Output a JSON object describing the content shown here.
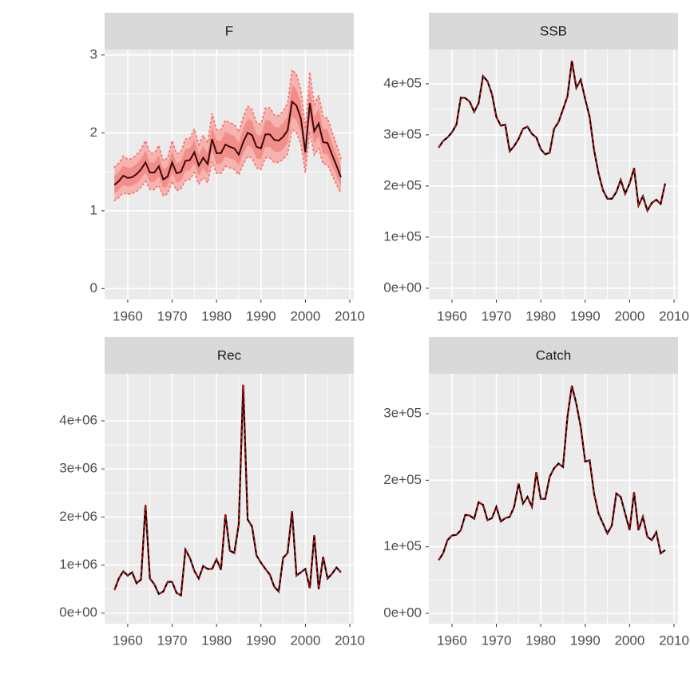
{
  "chart_data": [
    {
      "type": "line",
      "title": "F",
      "x": [
        1957,
        1958,
        1959,
        1960,
        1961,
        1962,
        1963,
        1964,
        1965,
        1966,
        1967,
        1968,
        1969,
        1970,
        1971,
        1972,
        1973,
        1974,
        1975,
        1976,
        1977,
        1978,
        1979,
        1980,
        1981,
        1982,
        1983,
        1984,
        1985,
        1986,
        1987,
        1988,
        1989,
        1990,
        1991,
        1992,
        1993,
        1994,
        1995,
        1996,
        1997,
        1998,
        1999,
        2000,
        2001,
        2002,
        2003,
        2004,
        2005,
        2006,
        2007,
        2008
      ],
      "values": [
        1.33,
        1.38,
        1.45,
        1.42,
        1.43,
        1.47,
        1.53,
        1.62,
        1.49,
        1.49,
        1.57,
        1.4,
        1.44,
        1.62,
        1.48,
        1.5,
        1.64,
        1.65,
        1.75,
        1.58,
        1.68,
        1.6,
        1.92,
        1.74,
        1.74,
        1.85,
        1.82,
        1.8,
        1.72,
        1.88,
        2.0,
        1.97,
        1.82,
        1.8,
        1.98,
        1.98,
        1.91,
        1.9,
        1.95,
        2.03,
        2.4,
        2.35,
        2.18,
        1.75,
        2.38,
        2.02,
        2.12,
        1.88,
        1.87,
        1.72,
        1.58,
        1.43
      ],
      "lower": [
        1.13,
        1.17,
        1.23,
        1.21,
        1.22,
        1.25,
        1.3,
        1.38,
        1.27,
        1.27,
        1.33,
        1.19,
        1.22,
        1.38,
        1.26,
        1.28,
        1.39,
        1.4,
        1.49,
        1.34,
        1.43,
        1.36,
        1.63,
        1.48,
        1.48,
        1.57,
        1.55,
        1.53,
        1.46,
        1.6,
        1.7,
        1.67,
        1.55,
        1.53,
        1.68,
        1.68,
        1.62,
        1.62,
        1.66,
        1.73,
        2.04,
        2.0,
        1.85,
        1.49,
        2.02,
        1.72,
        1.8,
        1.6,
        1.59,
        1.46,
        1.34,
        1.22
      ],
      "upper": [
        1.56,
        1.61,
        1.7,
        1.66,
        1.67,
        1.72,
        1.79,
        1.9,
        1.74,
        1.74,
        1.84,
        1.64,
        1.68,
        1.9,
        1.73,
        1.76,
        1.92,
        1.93,
        2.05,
        1.85,
        1.97,
        1.87,
        2.25,
        2.04,
        2.04,
        2.16,
        2.13,
        2.11,
        2.01,
        2.2,
        2.34,
        2.3,
        2.13,
        2.11,
        2.32,
        2.32,
        2.23,
        2.22,
        2.28,
        2.38,
        2.81,
        2.75,
        2.55,
        2.05,
        2.78,
        2.36,
        2.48,
        2.2,
        2.19,
        2.01,
        1.85,
        1.67
      ],
      "inner_lower": [
        1.22,
        1.27,
        1.33,
        1.31,
        1.32,
        1.35,
        1.41,
        1.49,
        1.37,
        1.37,
        1.44,
        1.29,
        1.32,
        1.49,
        1.36,
        1.38,
        1.51,
        1.52,
        1.61,
        1.45,
        1.55,
        1.47,
        1.77,
        1.6,
        1.6,
        1.7,
        1.67,
        1.66,
        1.58,
        1.73,
        1.84,
        1.81,
        1.67,
        1.66,
        1.82,
        1.82,
        1.76,
        1.75,
        1.79,
        1.87,
        2.21,
        2.16,
        2.01,
        1.61,
        2.19,
        1.86,
        1.95,
        1.73,
        1.72,
        1.58,
        1.45,
        1.32
      ],
      "inner_upper": [
        1.45,
        1.5,
        1.58,
        1.55,
        1.56,
        1.6,
        1.67,
        1.77,
        1.62,
        1.62,
        1.71,
        1.53,
        1.57,
        1.77,
        1.61,
        1.64,
        1.79,
        1.8,
        1.91,
        1.72,
        1.83,
        1.74,
        2.09,
        1.9,
        1.9,
        2.02,
        1.98,
        1.96,
        1.87,
        2.05,
        2.18,
        2.15,
        1.98,
        1.96,
        2.16,
        2.16,
        2.08,
        2.07,
        2.13,
        2.21,
        2.62,
        2.56,
        2.38,
        1.91,
        2.59,
        2.2,
        2.31,
        2.05,
        2.04,
        1.87,
        1.72,
        1.56
      ],
      "color": "#3b0a0a",
      "band_color": "#f6b3b0",
      "inner_band_color": "#f28e89",
      "dash_color": "#f8766d",
      "xlim": [
        1954.8,
        2010.9
      ],
      "xticks": [
        1960,
        1970,
        1980,
        1990,
        2000,
        2010
      ],
      "ylim": [
        -0.14,
        3.07
      ],
      "yticks": [
        0,
        1,
        2,
        3
      ],
      "grid": true
    },
    {
      "type": "line",
      "title": "SSB",
      "x": [
        1957,
        1958,
        1959,
        1960,
        1961,
        1962,
        1963,
        1964,
        1965,
        1966,
        1967,
        1968,
        1969,
        1970,
        1971,
        1972,
        1973,
        1974,
        1975,
        1976,
        1977,
        1978,
        1979,
        1980,
        1981,
        1982,
        1983,
        1984,
        1985,
        1986,
        1987,
        1988,
        1989,
        1990,
        1991,
        1992,
        1993,
        1994,
        1995,
        1996,
        1997,
        1998,
        1999,
        2000,
        2001,
        2002,
        2003,
        2004,
        2005,
        2006,
        2007,
        2008
      ],
      "values": [
        275000,
        288000,
        295000,
        305000,
        320000,
        373000,
        372000,
        365000,
        345000,
        362000,
        415000,
        405000,
        380000,
        335000,
        318000,
        320000,
        268000,
        278000,
        292000,
        312000,
        316000,
        302000,
        295000,
        272000,
        262000,
        265000,
        312000,
        325000,
        350000,
        375000,
        445000,
        392000,
        408000,
        370000,
        335000,
        270000,
        225000,
        192000,
        175000,
        175000,
        188000,
        212000,
        185000,
        205000,
        235000,
        162000,
        180000,
        152000,
        167000,
        173000,
        165000,
        205000
      ],
      "color": "#000000",
      "dash_color": "#ff0000",
      "xlim": [
        1954.8,
        2010.9
      ],
      "xticks": [
        1960,
        1970,
        1980,
        1990,
        2000,
        2010
      ],
      "ylim": [
        -22000,
        467000
      ],
      "yticks": [
        {
          "value": 0,
          "label": "0e+00"
        },
        {
          "value": 100000,
          "label": "1e+05"
        },
        {
          "value": 200000,
          "label": "2e+05"
        },
        {
          "value": 300000,
          "label": "3e+05"
        },
        {
          "value": 400000,
          "label": "4e+05"
        }
      ],
      "grid": true
    },
    {
      "type": "line",
      "title": "Rec",
      "x": [
        1957,
        1958,
        1959,
        1960,
        1961,
        1962,
        1963,
        1964,
        1965,
        1966,
        1967,
        1968,
        1969,
        1970,
        1971,
        1972,
        1973,
        1974,
        1975,
        1976,
        1977,
        1978,
        1979,
        1980,
        1981,
        1982,
        1983,
        1984,
        1985,
        1986,
        1987,
        1988,
        1989,
        1990,
        1991,
        1992,
        1993,
        1994,
        1995,
        1996,
        1997,
        1998,
        1999,
        2000,
        2001,
        2002,
        2003,
        2004,
        2005,
        2006,
        2007,
        2008
      ],
      "values": [
        480000,
        720000,
        870000,
        780000,
        850000,
        620000,
        700000,
        2250000,
        720000,
        600000,
        400000,
        450000,
        650000,
        650000,
        420000,
        370000,
        1320000,
        1150000,
        880000,
        720000,
        980000,
        920000,
        920000,
        1120000,
        900000,
        2050000,
        1300000,
        1250000,
        1850000,
        4750000,
        1950000,
        1800000,
        1200000,
        1050000,
        920000,
        800000,
        550000,
        450000,
        1150000,
        1250000,
        2120000,
        780000,
        850000,
        920000,
        520000,
        1620000,
        500000,
        1170000,
        720000,
        820000,
        950000,
        850000
      ],
      "color": "#000000",
      "dash_color": "#ff0000",
      "xlim": [
        1954.8,
        2010.9
      ],
      "xticks": [
        1960,
        1970,
        1980,
        1990,
        2000,
        2010
      ],
      "ylim": [
        -220000,
        4980000
      ],
      "yticks": [
        {
          "value": 0,
          "label": "0e+00"
        },
        {
          "value": 1000000,
          "label": "1e+06"
        },
        {
          "value": 2000000,
          "label": "2e+06"
        },
        {
          "value": 3000000,
          "label": "3e+06"
        },
        {
          "value": 4000000,
          "label": "4e+06"
        }
      ],
      "grid": true
    },
    {
      "type": "line",
      "title": "Catch",
      "x": [
        1957,
        1958,
        1959,
        1960,
        1961,
        1962,
        1963,
        1964,
        1965,
        1966,
        1967,
        1968,
        1969,
        1970,
        1971,
        1972,
        1973,
        1974,
        1975,
        1976,
        1977,
        1978,
        1979,
        1980,
        1981,
        1982,
        1983,
        1984,
        1985,
        1986,
        1987,
        1988,
        1989,
        1990,
        1991,
        1992,
        1993,
        1994,
        1995,
        1996,
        1997,
        1998,
        1999,
        2000,
        2001,
        2002,
        2003,
        2004,
        2005,
        2006,
        2007,
        2008
      ],
      "values": [
        80000,
        90000,
        110000,
        117000,
        118000,
        125000,
        148000,
        147000,
        142000,
        167000,
        163000,
        140000,
        143000,
        160000,
        138000,
        143000,
        145000,
        160000,
        195000,
        165000,
        175000,
        160000,
        212000,
        172000,
        172000,
        205000,
        218000,
        225000,
        220000,
        295000,
        342000,
        315000,
        280000,
        228000,
        230000,
        180000,
        150000,
        135000,
        120000,
        132000,
        180000,
        175000,
        150000,
        125000,
        182000,
        125000,
        145000,
        115000,
        110000,
        122000,
        90000,
        95000
      ],
      "color": "#000000",
      "dash_color": "#ff0000",
      "xlim": [
        1954.8,
        2010.9
      ],
      "xticks": [
        1960,
        1970,
        1980,
        1990,
        2000,
        2010
      ],
      "ylim": [
        -15600,
        360000
      ],
      "yticks": [
        {
          "value": 0,
          "label": "0e+00"
        },
        {
          "value": 100000,
          "label": "1e+05"
        },
        {
          "value": 200000,
          "label": "2e+05"
        },
        {
          "value": 300000,
          "label": "3e+05"
        }
      ],
      "grid": true
    }
  ]
}
